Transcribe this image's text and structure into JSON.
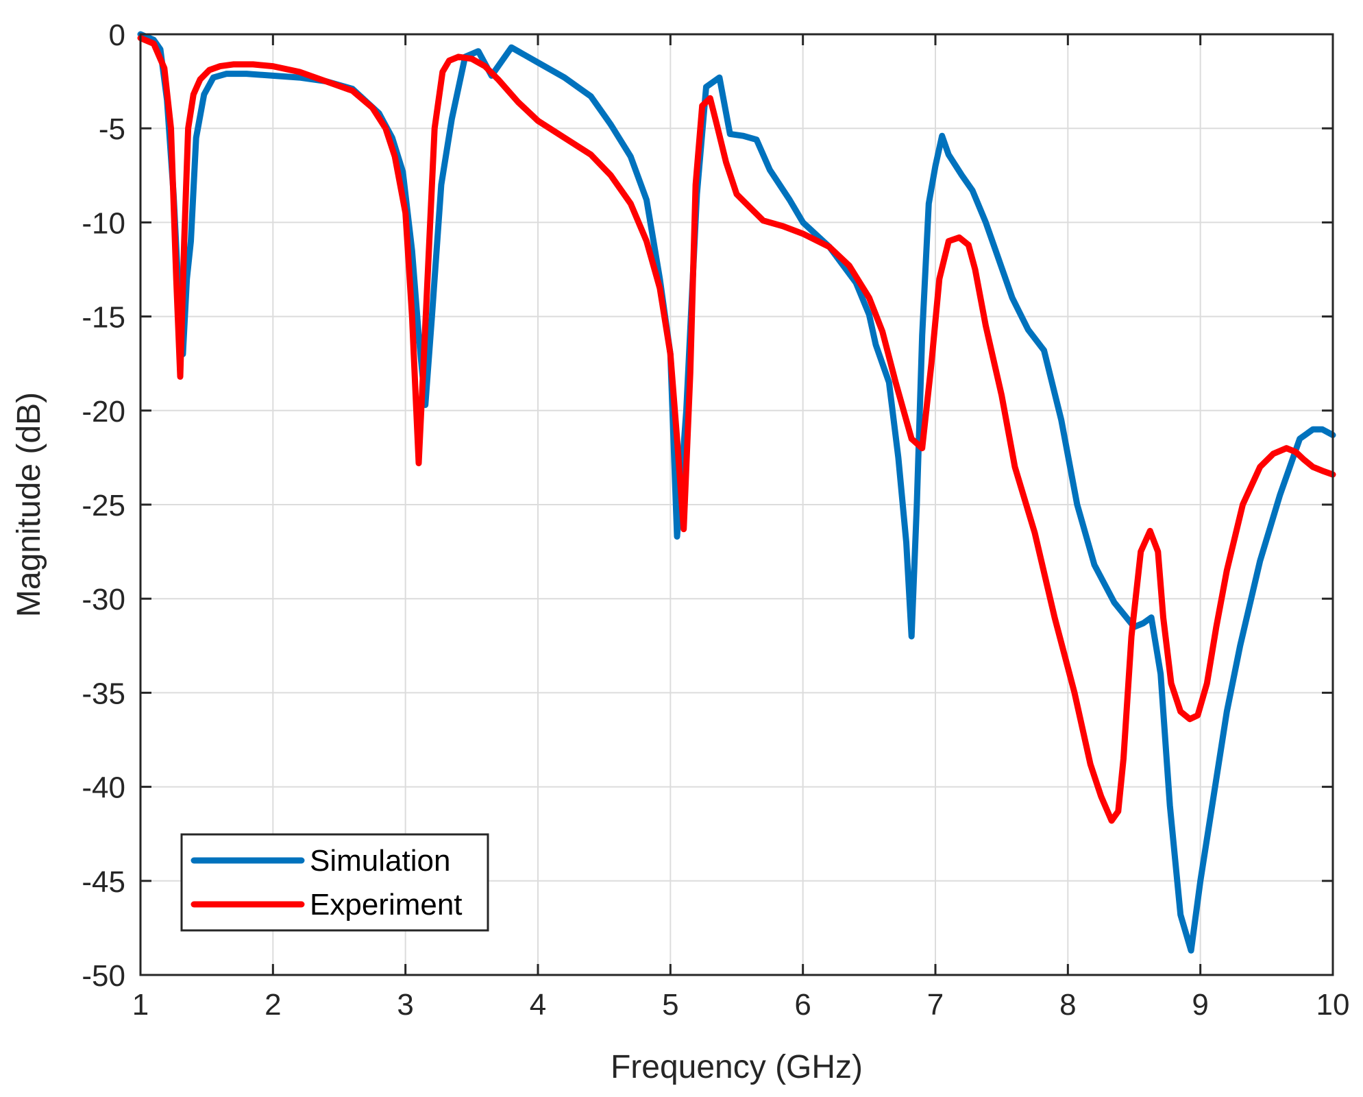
{
  "chart_data": {
    "type": "line",
    "title": "",
    "xlabel": "Frequency (GHz)",
    "ylabel": "Magnitude (dB)",
    "xlim": [
      1,
      10
    ],
    "ylim": [
      -50,
      0
    ],
    "xticks": [
      1,
      2,
      3,
      4,
      5,
      6,
      7,
      8,
      9,
      10
    ],
    "yticks": [
      0,
      -5,
      -10,
      -15,
      -20,
      -25,
      -30,
      -35,
      -40,
      -45,
      -50
    ],
    "xtick_labels": [
      "1",
      "2",
      "3",
      "4",
      "5",
      "6",
      "7",
      "8",
      "9",
      "10"
    ],
    "ytick_labels": [
      "0",
      "-5",
      "-10",
      "-15",
      "-20",
      "-25",
      "-30",
      "-35",
      "-40",
      "-45",
      "-50"
    ],
    "grid": true,
    "legend_position": "bottom-left",
    "series": [
      {
        "name": "Simulation",
        "color": "#0072BD",
        "x": [
          1.0,
          1.1,
          1.15,
          1.2,
          1.25,
          1.3,
          1.32,
          1.35,
          1.38,
          1.42,
          1.48,
          1.55,
          1.65,
          1.8,
          2.0,
          2.2,
          2.4,
          2.6,
          2.8,
          2.9,
          2.98,
          3.05,
          3.1,
          3.15,
          3.2,
          3.27,
          3.35,
          3.45,
          3.55,
          3.65,
          3.8,
          4.0,
          4.2,
          4.4,
          4.55,
          4.7,
          4.82,
          4.92,
          5.0,
          5.05,
          5.12,
          5.2,
          5.27,
          5.37,
          5.45,
          5.55,
          5.65,
          5.75,
          5.9,
          6.0,
          6.2,
          6.4,
          6.5,
          6.55,
          6.65,
          6.72,
          6.78,
          6.82,
          6.86,
          6.9,
          6.95,
          7.0,
          7.05,
          7.1,
          7.2,
          7.28,
          7.38,
          7.48,
          7.58,
          7.7,
          7.82,
          7.95,
          8.07,
          8.2,
          8.35,
          8.5,
          8.57,
          8.63,
          8.7,
          8.77,
          8.85,
          8.93,
          9.0,
          9.1,
          9.2,
          9.3,
          9.45,
          9.6,
          9.75,
          9.85,
          9.92,
          10.0
        ],
        "y": [
          0.0,
          -0.3,
          -0.8,
          -3.5,
          -8.5,
          -15.5,
          -17.0,
          -13.0,
          -11.0,
          -5.5,
          -3.2,
          -2.3,
          -2.1,
          -2.1,
          -2.2,
          -2.3,
          -2.5,
          -2.9,
          -4.2,
          -5.5,
          -7.3,
          -11.5,
          -16.0,
          -19.7,
          -15.0,
          -8.0,
          -4.5,
          -1.2,
          -0.9,
          -2.2,
          -0.7,
          -1.5,
          -2.3,
          -3.3,
          -4.8,
          -6.5,
          -8.8,
          -13.0,
          -17.0,
          -26.7,
          -20.0,
          -8.5,
          -2.8,
          -2.3,
          -5.3,
          -5.4,
          -5.6,
          -7.2,
          -8.8,
          -10.0,
          -11.3,
          -13.2,
          -14.9,
          -16.5,
          -18.5,
          -22.5,
          -27.0,
          -32.0,
          -25.0,
          -16.0,
          -9.0,
          -7.0,
          -5.4,
          -6.4,
          -7.5,
          -8.3,
          -10.0,
          -12.0,
          -14.0,
          -15.7,
          -16.8,
          -20.5,
          -25.0,
          -28.2,
          -30.2,
          -31.5,
          -31.3,
          -31.0,
          -34.0,
          -41.0,
          -46.8,
          -48.7,
          -45.0,
          -40.5,
          -36.0,
          -32.5,
          -28.0,
          -24.5,
          -21.5,
          -21.0,
          -21.0,
          -21.3
        ]
      },
      {
        "name": "Experiment",
        "color": "#FF0000",
        "x": [
          1.0,
          1.1,
          1.18,
          1.23,
          1.27,
          1.3,
          1.33,
          1.36,
          1.4,
          1.45,
          1.52,
          1.6,
          1.7,
          1.85,
          2.0,
          2.2,
          2.4,
          2.6,
          2.75,
          2.85,
          2.92,
          3.0,
          3.05,
          3.1,
          3.16,
          3.22,
          3.28,
          3.33,
          3.4,
          3.5,
          3.6,
          3.7,
          3.85,
          4.0,
          4.2,
          4.4,
          4.55,
          4.7,
          4.82,
          4.92,
          5.0,
          5.05,
          5.1,
          5.15,
          5.19,
          5.24,
          5.3,
          5.35,
          5.42,
          5.5,
          5.6,
          5.7,
          5.85,
          6.0,
          6.2,
          6.35,
          6.5,
          6.6,
          6.7,
          6.82,
          6.9,
          6.97,
          7.03,
          7.1,
          7.18,
          7.25,
          7.3,
          7.38,
          7.5,
          7.6,
          7.75,
          7.9,
          8.05,
          8.17,
          8.25,
          8.33,
          8.38,
          8.42,
          8.48,
          8.55,
          8.62,
          8.68,
          8.72,
          8.78,
          8.85,
          8.92,
          8.98,
          9.05,
          9.12,
          9.2,
          9.32,
          9.45,
          9.55,
          9.65,
          9.72,
          9.78,
          9.85,
          9.92,
          10.0
        ],
        "y": [
          -0.2,
          -0.5,
          -1.8,
          -5.0,
          -13.0,
          -18.2,
          -11.0,
          -5.0,
          -3.2,
          -2.4,
          -1.9,
          -1.7,
          -1.6,
          -1.6,
          -1.7,
          -2.0,
          -2.5,
          -3.0,
          -3.9,
          -5.0,
          -6.5,
          -9.5,
          -15.0,
          -22.8,
          -14.0,
          -5.0,
          -2.0,
          -1.4,
          -1.2,
          -1.3,
          -1.7,
          -2.4,
          -3.6,
          -4.6,
          -5.5,
          -6.4,
          -7.5,
          -9.0,
          -11.0,
          -13.5,
          -17.0,
          -21.5,
          -26.3,
          -18.0,
          -8.0,
          -3.8,
          -3.4,
          -4.8,
          -6.8,
          -8.5,
          -9.2,
          -9.9,
          -10.2,
          -10.6,
          -11.3,
          -12.3,
          -14.0,
          -15.8,
          -18.5,
          -21.5,
          -22.0,
          -17.5,
          -13.0,
          -11.0,
          -10.8,
          -11.2,
          -12.5,
          -15.5,
          -19.2,
          -23.0,
          -26.5,
          -31.0,
          -35.0,
          -38.8,
          -40.5,
          -41.8,
          -41.3,
          -38.5,
          -32.0,
          -27.5,
          -26.4,
          -27.5,
          -31.0,
          -34.5,
          -36.0,
          -36.4,
          -36.2,
          -34.5,
          -31.5,
          -28.5,
          -25.0,
          -23.0,
          -22.3,
          -22.0,
          -22.2,
          -22.6,
          -23.0,
          -23.2,
          -23.4
        ]
      }
    ]
  }
}
